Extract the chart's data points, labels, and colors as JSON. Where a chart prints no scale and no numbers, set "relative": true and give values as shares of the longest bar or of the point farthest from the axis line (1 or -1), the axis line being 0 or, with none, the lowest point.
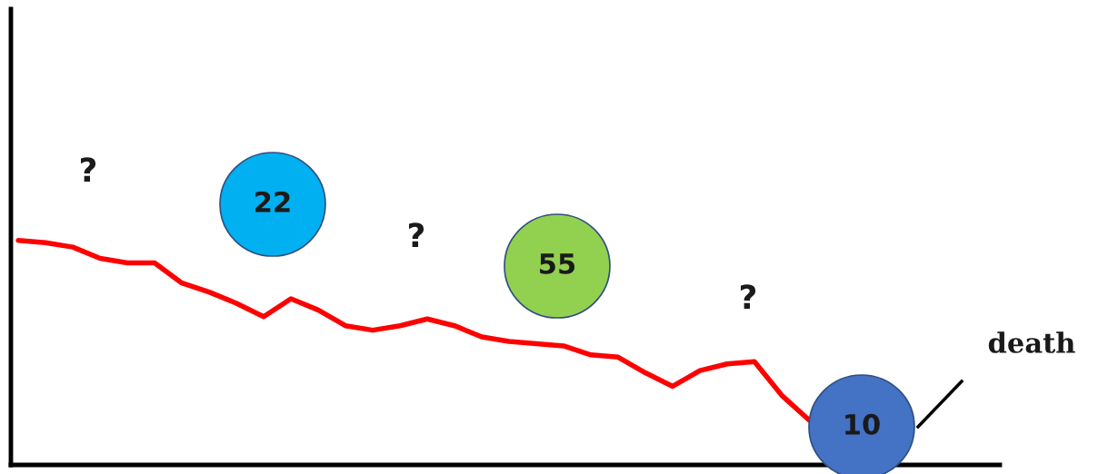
{
  "chart_data": {
    "type": "line",
    "relative": true,
    "color": "#ff0000",
    "categories": [
      null,
      null,
      null,
      null,
      null,
      null,
      null,
      null,
      null,
      null,
      null,
      null,
      null,
      null,
      null,
      null,
      null,
      null,
      null,
      null,
      null,
      null,
      null,
      null,
      null,
      null,
      null,
      null,
      null,
      null
    ],
    "values": [
      1.0,
      0.99,
      0.97,
      0.92,
      0.9,
      0.9,
      0.81,
      0.77,
      0.72,
      0.66,
      0.74,
      0.69,
      0.62,
      0.6,
      0.62,
      0.65,
      0.62,
      0.57,
      0.55,
      0.54,
      0.53,
      0.49,
      0.48,
      0.41,
      0.35,
      0.42,
      0.45,
      0.46,
      0.31,
      0.2
    ],
    "annotations": [
      "?",
      "22",
      "?",
      "55",
      "?",
      "10",
      "death"
    ],
    "grid": false,
    "legend": false,
    "marker": "none",
    "line_style": "solid"
  }
}
